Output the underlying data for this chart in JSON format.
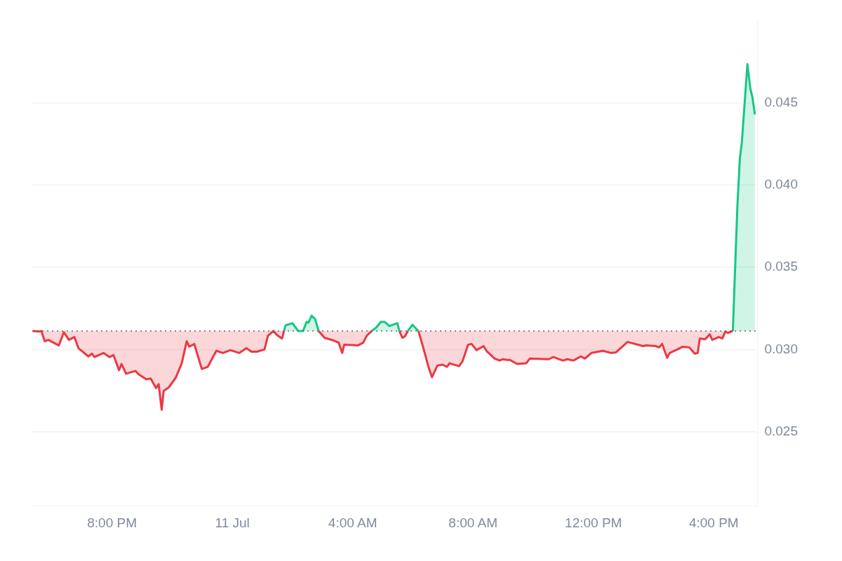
{
  "chart_data": {
    "type": "area",
    "x": [
      "--07-10T17:22",
      "--07-10T17:35",
      "--07-10T17:39",
      "--07-10T17:46",
      "--07-10T17:53",
      "--07-10T18:14",
      "--07-10T18:24",
      "--07-10T18:34",
      "--07-10T18:45",
      "--07-10T18:53",
      "--07-10T19:13",
      "--07-10T19:20",
      "--07-10T19:25",
      "--07-10T19:43",
      "--07-10T19:55",
      "--07-10T20:03",
      "--07-10T20:14",
      "--07-10T20:19",
      "--07-10T20:28",
      "--07-10T20:47",
      "--07-10T20:53",
      "--07-10T21:08",
      "--07-10T21:17",
      "--07-10T21:28",
      "--07-10T21:33",
      "--07-10T21:39",
      "--07-10T21:43",
      "--07-10T21:53",
      "--07-10T22:07",
      "--07-10T22:19",
      "--07-10T22:29",
      "--07-10T22:34",
      "--07-10T22:44",
      "--07-10T22:59",
      "--07-10T23:11",
      "--07-10T23:28",
      "--07-10T23:41",
      "--07-10T23:56",
      "--07-11T00:14",
      "--07-11T00:28",
      "--07-11T00:38",
      "--07-11T00:49",
      "--07-11T01:04",
      "--07-11T01:11",
      "--07-11T01:22",
      "--07-11T01:29",
      "--07-11T01:39",
      "--07-11T01:43",
      "--07-11T01:46",
      "--07-11T02:00",
      "--07-11T02:11",
      "--07-11T02:21",
      "--07-11T02:28",
      "--07-11T02:32",
      "--07-11T02:38",
      "--07-11T02:45",
      "--07-11T02:52",
      "--07-11T03:04",
      "--07-11T03:22",
      "--07-11T03:32",
      "--07-11T03:39",
      "--07-11T03:43",
      "--07-11T04:10",
      "--07-11T04:21",
      "--07-11T04:28",
      "--07-11T04:38",
      "--07-11T04:47",
      "--07-11T04:56",
      "--07-11T05:04",
      "--07-11T05:13",
      "--07-11T05:29",
      "--07-11T05:33",
      "--07-11T05:39",
      "--07-11T05:44",
      "--07-11T05:50",
      "--07-11T05:59",
      "--07-11T06:11",
      "--07-11T06:21",
      "--07-11T06:31",
      "--07-11T06:38",
      "--07-11T06:49",
      "--07-11T06:59",
      "--07-11T07:08",
      "--07-11T07:13",
      "--07-11T07:32",
      "--07-11T07:39",
      "--07-11T07:50",
      "--07-11T07:57",
      "--07-11T08:07",
      "--07-11T08:21",
      "--07-11T08:28",
      "--07-11T08:43",
      "--07-11T08:53",
      "--07-11T08:59",
      "--07-11T09:08",
      "--07-11T09:13",
      "--07-11T09:28",
      "--07-11T09:46",
      "--07-11T09:53",
      "--07-11T10:31",
      "--07-11T10:40",
      "--07-11T10:59",
      "--07-11T11:08",
      "--07-11T11:20",
      "--07-11T11:35",
      "--07-11T11:43",
      "--07-11T11:56",
      "--07-11T12:19",
      "--07-11T12:35",
      "--07-11T12:45",
      "--07-11T13:08",
      "--07-11T13:39",
      "--07-11T13:46",
      "--07-11T14:04",
      "--07-11T14:11",
      "--07-11T14:17",
      "--07-11T14:27",
      "--07-11T14:32",
      "--07-11T14:47",
      "--07-11T14:58",
      "--07-11T15:11",
      "--07-11T15:22",
      "--07-11T15:28",
      "--07-11T15:32",
      "--07-11T15:43",
      "--07-11T15:52",
      "--07-11T15:57",
      "--07-11T16:10",
      "--07-11T16:17",
      "--07-11T16:23",
      "--07-11T16:28",
      "--07-11T16:38",
      "--07-11T16:47",
      "--07-11T16:52",
      "--07-11T16:56",
      "--07-11T17:07",
      "--07-11T17:13",
      "--07-11T17:17",
      "--07-11T17:22"
    ],
    "series": [
      {
        "color": "#ea3943",
        "values": [
          0.03113,
          0.03109,
          0.03113,
          0.0305,
          0.03059,
          0.03025,
          0.03105,
          0.03059,
          0.03076,
          0.03008,
          0.02958,
          0.02975,
          0.02954,
          0.02979,
          0.02954,
          0.02966,
          0.02874,
          0.02912,
          0.02853,
          0.0287,
          0.02849,
          0.02819,
          0.02824,
          0.02765,
          0.0279,
          0.02634,
          0.02748,
          0.02769,
          0.02828,
          0.02916,
          0.0305,
          0.03017,
          0.03034,
          0.02882,
          0.02895,
          0.02992,
          0.02979,
          0.02996,
          0.02979,
          0.03008,
          0.02987,
          0.02987,
          0.03,
          0.03084,
          0.03113,
          0.03088,
          0.03067,
          0.03113,
          null,
          null,
          null,
          null,
          null,
          null,
          null,
          null,
          0.03113,
          0.03071,
          0.03055,
          0.03042,
          0.02979,
          0.03029,
          0.03025,
          0.03042,
          0.03084,
          0.03113,
          null,
          null,
          null,
          null,
          null,
          0.03113,
          0.03071,
          0.0308,
          0.03113,
          null,
          0.03113,
          0.03008,
          0.02895,
          0.02832,
          0.02903,
          0.02908,
          0.02895,
          0.02916,
          0.02899,
          0.02929,
          0.03029,
          0.03034,
          0.02996,
          0.03021,
          0.02987,
          0.02945,
          0.02933,
          0.02941,
          0.02937,
          0.02937,
          0.02912,
          0.02916,
          0.02945,
          0.02941,
          0.02954,
          0.02933,
          0.02941,
          0.02933,
          0.02958,
          0.02945,
          0.02979,
          0.02992,
          0.02979,
          0.02983,
          0.03046,
          0.03021,
          0.03025,
          0.03021,
          0.03013,
          0.03034,
          0.0295,
          0.02979,
          0.03,
          0.03017,
          0.03013,
          0.02975,
          0.02979,
          0.03067,
          0.03063,
          0.03092,
          0.03059,
          0.03076,
          0.03067,
          0.03109,
          0.03101,
          0.03113,
          null,
          null,
          null,
          null,
          null,
          null,
          null
        ]
      },
      {
        "color": "#16c784",
        "values": [
          null,
          null,
          null,
          null,
          null,
          null,
          null,
          null,
          null,
          null,
          null,
          null,
          null,
          null,
          null,
          null,
          null,
          null,
          null,
          null,
          null,
          null,
          null,
          null,
          null,
          null,
          null,
          null,
          null,
          null,
          null,
          null,
          null,
          null,
          null,
          null,
          null,
          null,
          null,
          null,
          null,
          null,
          null,
          null,
          null,
          null,
          null,
          0.03113,
          0.03147,
          0.0316,
          0.03113,
          0.03113,
          0.03168,
          0.03164,
          0.03206,
          0.03185,
          0.03113,
          null,
          null,
          null,
          null,
          null,
          null,
          null,
          null,
          0.03113,
          0.03134,
          0.03168,
          0.03168,
          0.03143,
          0.0316,
          0.03113,
          null,
          null,
          0.03113,
          0.03151,
          0.03113,
          null,
          null,
          null,
          null,
          null,
          null,
          null,
          null,
          null,
          null,
          null,
          null,
          null,
          null,
          null,
          null,
          null,
          null,
          null,
          null,
          null,
          null,
          null,
          null,
          null,
          null,
          null,
          null,
          null,
          null,
          null,
          null,
          null,
          null,
          null,
          null,
          null,
          null,
          null,
          null,
          null,
          null,
          null,
          null,
          null,
          null,
          null,
          null,
          null,
          null,
          null,
          null,
          null,
          null,
          0.03113,
          0.0387,
          0.04164,
          0.04261,
          0.04735,
          0.04584,
          0.04534,
          0.04429
        ]
      }
    ],
    "xlim": [
      "--07-10T17:21",
      "--07-11T17:27"
    ],
    "ylim": [
      0.0205,
      0.05
    ],
    "xticks": [
      {
        "value": "--07-10T20:00",
        "label": "8:00 PM"
      },
      {
        "value": "--07-11T00:00",
        "label": "11 Jul"
      },
      {
        "value": "--07-11T04:00",
        "label": "4:00 AM"
      },
      {
        "value": "--07-11T08:00",
        "label": "8:00 AM"
      },
      {
        "value": "--07-11T12:00",
        "label": "12:00 PM"
      },
      {
        "value": "--07-11T16:00",
        "label": "4:00 PM"
      }
    ],
    "yticks": [
      0.025,
      {
        "value": 0.03,
        "label": "0.030"
      },
      0.035,
      {
        "value": 0.04,
        "label": "0.040"
      },
      0.045
    ],
    "grid": "y",
    "ref_lines": [
      {
        "axis": "y",
        "value": 0.03113,
        "color": "#666666",
        "line_style": "dotted"
      }
    ]
  }
}
